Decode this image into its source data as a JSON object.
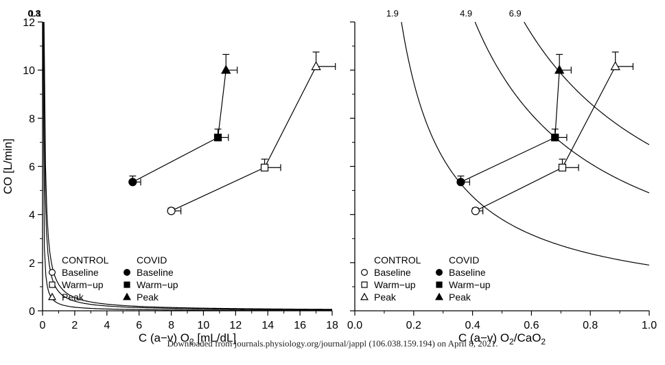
{
  "watermark": "Downloaded from journals.physiology.org/journal/jappl (106.038.159.194) on April 8, 2021.",
  "chart_data": [
    {
      "type": "scatter",
      "ylabel": "CO  [L/min]",
      "xlabel": "C (a−v) O",
      "xlabel_sub": "2",
      "xlabel_tail": "  [mL/dL]",
      "xlim": [
        0,
        18
      ],
      "ylim": [
        0,
        12
      ],
      "xticks": [
        "0",
        "2",
        "4",
        "6",
        "8",
        "10",
        "12",
        "14",
        "16",
        "18"
      ],
      "xtick_values": [
        0,
        2,
        4,
        6,
        8,
        10,
        12,
        14,
        16,
        18
      ],
      "yticks": [
        "0",
        "2",
        "4",
        "6",
        "8",
        "10",
        "12"
      ],
      "ytick_values": [
        0,
        2,
        4,
        6,
        8,
        10,
        12
      ],
      "isolines": [
        {
          "label": "0.3",
          "k": 0.3
        },
        {
          "label": "0.8",
          "k": 0.8
        },
        {
          "label": "1.1",
          "k": 1.1
        }
      ],
      "series": [
        {
          "name": "CONTROL",
          "marker_fill": "none",
          "points": [
            {
              "label": "Baseline",
              "marker": "circle",
              "x": 8.0,
              "y": 4.15,
              "xerr": 0.6,
              "yerr": 0.12
            },
            {
              "label": "Warm-up",
              "marker": "square",
              "x": 13.8,
              "y": 5.95,
              "xerr": 1.0,
              "yerr": 0.35
            },
            {
              "label": "Peak",
              "marker": "triangle",
              "x": 17.0,
              "y": 10.15,
              "xerr": 1.2,
              "yerr": 0.6
            }
          ]
        },
        {
          "name": "COVID",
          "marker_fill": "#000000",
          "points": [
            {
              "label": "Baseline",
              "marker": "circle",
              "x": 5.6,
              "y": 5.35,
              "xerr": 0.5,
              "yerr": 0.25
            },
            {
              "label": "Warm-up",
              "marker": "square",
              "x": 10.9,
              "y": 7.2,
              "xerr": 0.65,
              "yerr": 0.35
            },
            {
              "label": "Peak",
              "marker": "triangle",
              "x": 11.4,
              "y": 10.0,
              "xerr": 0.7,
              "yerr": 0.65
            }
          ]
        }
      ],
      "legend": {
        "placement": "bottom-left",
        "groups": [
          {
            "title": "CONTROL",
            "items": [
              {
                "label": "Baseline",
                "marker": "circle",
                "filled": false
              },
              {
                "label": "Warm−up",
                "marker": "square",
                "filled": false
              },
              {
                "label": "Peak",
                "marker": "triangle",
                "filled": false
              }
            ]
          },
          {
            "title": "COVID",
            "items": [
              {
                "label": "Baseline",
                "marker": "circle",
                "filled": true
              },
              {
                "label": "Warm−up",
                "marker": "square",
                "filled": true
              },
              {
                "label": "Peak",
                "marker": "triangle",
                "filled": true
              }
            ]
          }
        ]
      }
    },
    {
      "type": "scatter",
      "ylabel": "",
      "xlabel": "C (a−v) O",
      "xlabel_sub": "2",
      "xlabel_tail": "/CaO",
      "xlabel_sub2": "2",
      "xlim": [
        0,
        1
      ],
      "ylim": [
        0,
        12
      ],
      "xticks": [
        "0.0",
        "0.2",
        "0.4",
        "0.6",
        "0.8",
        "1.0"
      ],
      "xtick_values": [
        0,
        0.2,
        0.4,
        0.6,
        0.8,
        1.0
      ],
      "yticks": [],
      "ytick_values": [
        0,
        2,
        4,
        6,
        8,
        10,
        12
      ],
      "isolines": [
        {
          "label": "1.9",
          "k": 1.9
        },
        {
          "label": "4.9",
          "k": 4.9
        },
        {
          "label": "6.9",
          "k": 6.9
        }
      ],
      "series": [
        {
          "name": "CONTROL",
          "marker_fill": "none",
          "points": [
            {
              "label": "Baseline",
              "marker": "circle",
              "x": 0.41,
              "y": 4.15,
              "xerr": 0.025,
              "yerr": 0.12
            },
            {
              "label": "Warm-up",
              "marker": "square",
              "x": 0.705,
              "y": 5.95,
              "xerr": 0.055,
              "yerr": 0.35
            },
            {
              "label": "Peak",
              "marker": "triangle",
              "x": 0.885,
              "y": 10.15,
              "xerr": 0.06,
              "yerr": 0.6
            }
          ]
        },
        {
          "name": "COVID",
          "marker_fill": "#000000",
          "points": [
            {
              "label": "Baseline",
              "marker": "circle",
              "x": 0.36,
              "y": 5.35,
              "xerr": 0.03,
              "yerr": 0.25
            },
            {
              "label": "Warm-up",
              "marker": "square",
              "x": 0.68,
              "y": 7.2,
              "xerr": 0.04,
              "yerr": 0.35
            },
            {
              "label": "Peak",
              "marker": "triangle",
              "x": 0.695,
              "y": 10.0,
              "xerr": 0.04,
              "yerr": 0.65
            }
          ]
        }
      ],
      "legend": {
        "placement": "bottom-left",
        "groups": [
          {
            "title": "CONTROL",
            "items": [
              {
                "label": "Baseline",
                "marker": "circle",
                "filled": false
              },
              {
                "label": "Warm−up",
                "marker": "square",
                "filled": false
              },
              {
                "label": "Peak",
                "marker": "triangle",
                "filled": false
              }
            ]
          },
          {
            "title": "COVID",
            "items": [
              {
                "label": "Baseline",
                "marker": "circle",
                "filled": true
              },
              {
                "label": "Warm−up",
                "marker": "square",
                "filled": true
              },
              {
                "label": "Peak",
                "marker": "triangle",
                "filled": true
              }
            ]
          }
        ]
      }
    }
  ]
}
